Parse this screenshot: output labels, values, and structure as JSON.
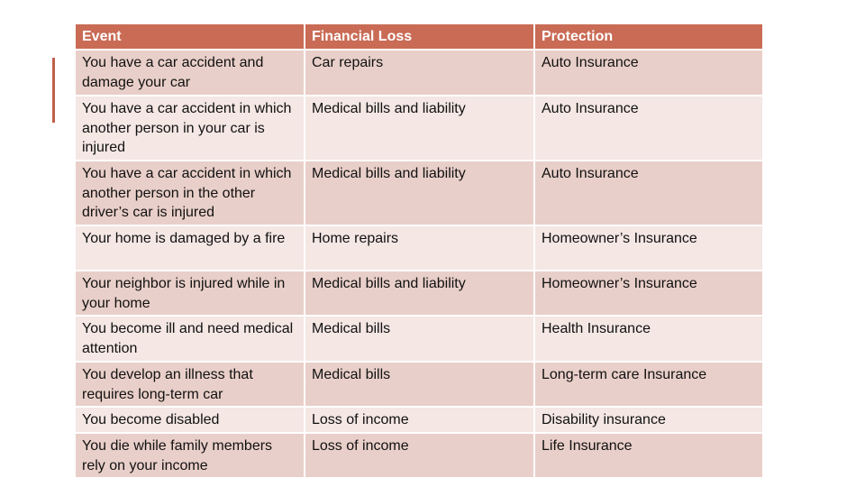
{
  "table": {
    "headers": [
      "Event",
      "Financial Loss",
      "Protection"
    ],
    "rows": [
      [
        "You have a car accident and damage your car",
        "Car repairs",
        "Auto Insurance"
      ],
      [
        "You have a car accident in which another person in your car is injured",
        "Medical bills and liability",
        "Auto Insurance"
      ],
      [
        "You have a car accident in which another person in the other driver’s car is injured",
        "Medical bills and liability",
        "Auto Insurance"
      ],
      [
        "Your home is damaged by a fire",
        "Home repairs",
        "Homeowner’s Insurance"
      ],
      [
        "Your neighbor is injured while in your home",
        "Medical bills and liability",
        "Homeowner’s Insurance"
      ],
      [
        "You become ill and need medical attention",
        "Medical bills",
        "Health Insurance"
      ],
      [
        "You develop an illness that requires long-term car",
        "Medical bills",
        "Long-term care Insurance"
      ],
      [
        "You become disabled",
        "Loss of income",
        "Disability insurance"
      ],
      [
        "You die while family members rely on your income",
        "Loss of income",
        "Life Insurance"
      ]
    ]
  },
  "colors": {
    "header": "#c96b55",
    "row_odd": "#e9cfc9",
    "row_even": "#f4e7e4",
    "accent": "#c0604a"
  }
}
